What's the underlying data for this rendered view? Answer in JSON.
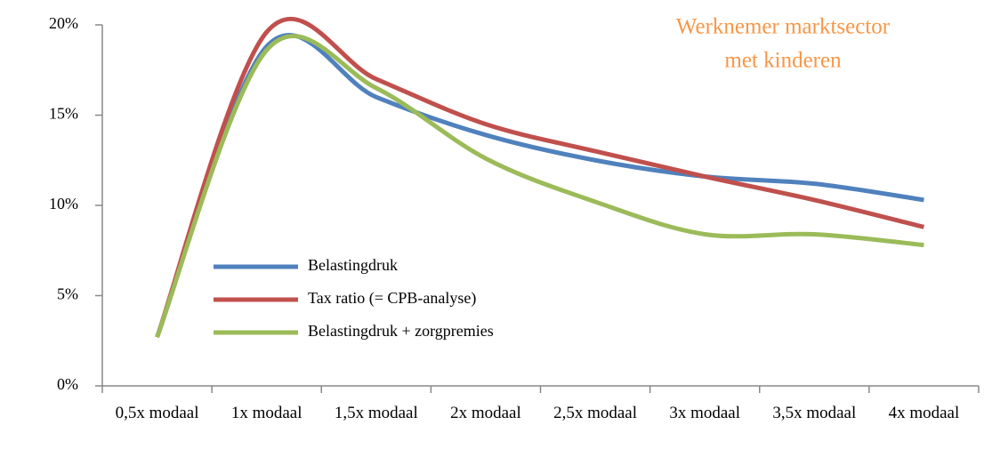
{
  "chart_data": {
    "type": "line",
    "annotation": [
      "Werknemer marktsector",
      "met kinderen"
    ],
    "categories": [
      "0,5x modaal",
      "1x modaal",
      "1,5x modaal",
      "2x modaal",
      "2,5x modaal",
      "3x modaal",
      "3,5x modaal",
      "4x modaal"
    ],
    "series": [
      {
        "name": "Belastingdruk",
        "color": "#4f81bd",
        "values": [
          2.7,
          18.8,
          16.0,
          13.9,
          12.5,
          11.6,
          11.2,
          10.3
        ]
      },
      {
        "name": "Tax ratio (= CPB-analyse)",
        "color": "#c0504d",
        "values": [
          2.7,
          19.6,
          17.0,
          14.5,
          13.0,
          11.6,
          10.3,
          8.8
        ]
      },
      {
        "name": "Belastingdruk + zorgpremies",
        "color": "#9bbb59",
        "values": [
          2.7,
          18.6,
          16.5,
          12.6,
          10.2,
          8.4,
          8.4,
          7.8
        ]
      }
    ],
    "ylim": [
      0,
      20
    ],
    "yticks": [
      {
        "value": 0,
        "label": "0%"
      },
      {
        "value": 5,
        "label": "5%"
      },
      {
        "value": 10,
        "label": "10%"
      },
      {
        "value": 15,
        "label": "15%"
      },
      {
        "value": 20,
        "label": "20%"
      }
    ],
    "legend": "lower-left"
  }
}
